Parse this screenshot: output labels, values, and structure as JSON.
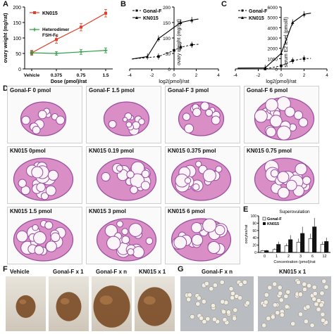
{
  "panels": {
    "A": "A",
    "B": "B",
    "C": "C",
    "D": "D",
    "E": "E",
    "F": "F",
    "G": "G"
  },
  "colors": {
    "kn015": "#e0402b",
    "heterodimer": "#2ea043",
    "tissue_pink": "#d98fc6",
    "tissue_purple": "#9b4aa0",
    "ovary_brown": "#7a4a24",
    "oocyte": "#f2ede2"
  },
  "chart_data": [
    {
      "type": "line",
      "panel": "A",
      "ylabel": "ovary weight (mg/rat)",
      "xlabel": "Dose (pmol)/rat",
      "categories": [
        "Vehicle",
        "0.375",
        "0.75",
        "1.5"
      ],
      "ylim": [
        0,
        200
      ],
      "yticks": [
        0,
        50,
        100,
        150,
        200
      ],
      "series": [
        {
          "name": "KN015",
          "values": [
            52,
            95,
            135,
            180
          ],
          "errors": [
            8,
            12,
            12,
            12
          ]
        },
        {
          "name": "Heterodimer FSH-Fc",
          "values": [
            52,
            50,
            55,
            60
          ],
          "errors": [
            6,
            6,
            8,
            8
          ]
        }
      ]
    },
    {
      "type": "line",
      "panel": "B",
      "ylabel": "ovary weight (mg/rat)",
      "xlabel": "log2(pmol)/rat",
      "xlim": [
        -4,
        4
      ],
      "xticks": [
        -4,
        -2,
        0,
        2,
        4
      ],
      "ylim": [
        0,
        200
      ],
      "yticks": [
        0,
        50,
        100,
        150,
        200
      ],
      "series": [
        {
          "name": "Gonal-F",
          "x": [
            -1.4,
            0,
            0.6,
            1.6
          ],
          "values": [
            40,
            60,
            70,
            78
          ]
        },
        {
          "name": "KN015",
          "x": [
            -2.4,
            -1.4,
            0.6,
            1.6
          ],
          "values": [
            40,
            98,
            150,
            158
          ]
        }
      ]
    },
    {
      "type": "line",
      "panel": "C",
      "ylabel": "serum E2 level (pmol/l)",
      "xlabel": "log2(pmol)/rat",
      "xlim": [
        -4,
        4
      ],
      "xticks": [
        -4,
        -2,
        0,
        2,
        4
      ],
      "ylim": [
        0,
        6000
      ],
      "yticks": [
        0,
        1000,
        2000,
        3000,
        4000,
        5000,
        6000
      ],
      "series": [
        {
          "name": "Gonal-F",
          "x": [
            -1.4,
            0,
            1,
            2
          ],
          "values": [
            0,
            300,
            800,
            1000
          ]
        },
        {
          "name": "KN015",
          "x": [
            -1.4,
            0,
            1,
            2
          ],
          "values": [
            100,
            1500,
            4500,
            5300
          ]
        }
      ]
    },
    {
      "type": "bar",
      "panel": "E",
      "title": "Superovulation",
      "ylabel": "oocytes/rat",
      "xlabel": "Concentration (pmol)/rat",
      "categories": [
        "0",
        "1",
        "2",
        "3",
        "6",
        "12"
      ],
      "ylim": [
        0,
        100
      ],
      "yticks": [
        0,
        20,
        40,
        60,
        80,
        100
      ],
      "series": [
        {
          "name": "Gonal-F",
          "values": [
            5,
            8,
            18,
            28,
            38,
            22
          ]
        },
        {
          "name": "KN015",
          "values": [
            5,
            22,
            35,
            52,
            70,
            30
          ]
        }
      ]
    }
  ],
  "histology": {
    "tiles": [
      {
        "label": "Gonal-F 0 pmol"
      },
      {
        "label": "Gonal-F 1.5 pmol"
      },
      {
        "label": "Gonal-F 3 pmol"
      },
      {
        "label": "Gonal-F 6 pmol"
      },
      {
        "label": "KN015 0pmol"
      },
      {
        "label": "KN015 0.19 pmol"
      },
      {
        "label": "KN015 0.375 pmol"
      },
      {
        "label": "KN015 0.75 pmol"
      },
      {
        "label": "KN015 1.5 pmol"
      },
      {
        "label": "KN015 3 pmol"
      },
      {
        "label": "KN015 6 pmol"
      }
    ]
  },
  "photos_F": [
    {
      "label": "Vehicle"
    },
    {
      "label": "Gonal-F x 1"
    },
    {
      "label": "Gonal-F x n"
    },
    {
      "label": "KN015 x 1"
    }
  ],
  "photos_G": [
    {
      "label": "Gonal-F x n"
    },
    {
      "label": "KN015 x 1"
    }
  ]
}
